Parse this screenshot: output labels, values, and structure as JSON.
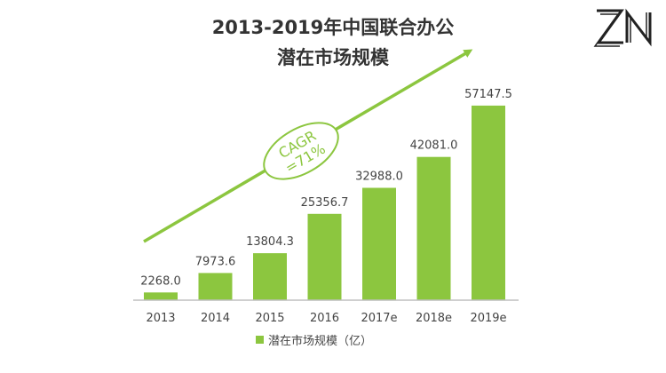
{
  "chart_data": {
    "type": "bar",
    "title_line1": "2013-2019年中国联合办公",
    "title_line2": "潜在市场规模",
    "categories": [
      "2013",
      "2014",
      "2015",
      "2016",
      "2017e",
      "2018e",
      "2019e"
    ],
    "series": [
      {
        "name": "潜在市场规模（亿）",
        "values": [
          2268.0,
          7973.6,
          13804.3,
          25356.7,
          32988.0,
          42081.0,
          57147.5
        ]
      }
    ],
    "value_labels": [
      "2268.0",
      "7973.6",
      "13804.3",
      "25356.7",
      "32988.0",
      "42081.0",
      "57147.5"
    ],
    "ylim": [
      0,
      60000
    ],
    "grid": false,
    "legend_position": "bottom-center",
    "annotation": {
      "line1": "CAGR",
      "line2": "=71%"
    },
    "colors": {
      "bar": "#8cc63f",
      "arrow": "#8cc63f",
      "axis": "#bfbfbf",
      "text": "#444444"
    }
  },
  "logo": {
    "text": "ZN"
  }
}
